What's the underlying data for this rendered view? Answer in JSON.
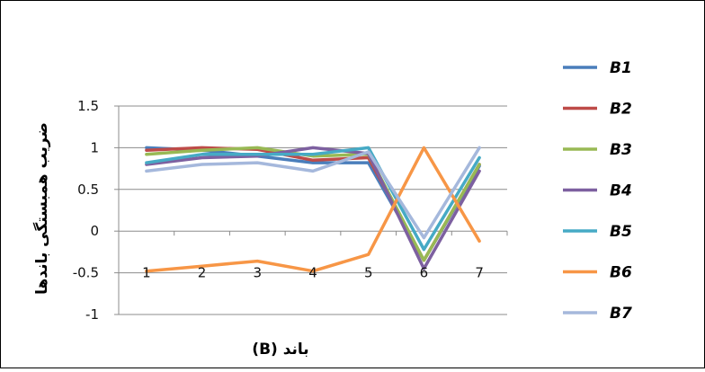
{
  "chart_data": {
    "type": "line",
    "title": "",
    "xlabel": "باند (B)",
    "ylabel": "ضریب همبستگی باندها",
    "x": [
      1,
      2,
      3,
      4,
      5,
      6,
      7
    ],
    "x_tick_labels": [
      "1",
      "2",
      "3",
      "4",
      "5",
      "6",
      "7"
    ],
    "y_tick_labels": [
      "1.5",
      "1",
      "0.5",
      "0",
      "-0.5",
      "-1"
    ],
    "y_ticks": [
      1.5,
      1,
      0.5,
      0,
      -0.5,
      -1
    ],
    "ylim": [
      -1,
      1.5
    ],
    "grid": "horizontal",
    "legend_position": "right",
    "series": [
      {
        "name": "B1",
        "color": "#4a7ebb",
        "values": [
          1,
          0.97,
          0.9,
          0.82,
          0.82,
          -0.35,
          0.78
        ]
      },
      {
        "name": "B2",
        "color": "#be4b48",
        "values": [
          0.97,
          1,
          0.98,
          0.85,
          0.88,
          -0.35,
          0.8
        ]
      },
      {
        "name": "B3",
        "color": "#98b954",
        "values": [
          0.92,
          0.97,
          1,
          0.9,
          0.92,
          -0.35,
          0.8
        ]
      },
      {
        "name": "B4",
        "color": "#7d60a0",
        "values": [
          0.8,
          0.88,
          0.9,
          1,
          0.93,
          -0.45,
          0.72
        ]
      },
      {
        "name": "B5",
        "color": "#46aac5",
        "values": [
          0.82,
          0.92,
          0.92,
          0.92,
          1,
          -0.22,
          0.88
        ]
      },
      {
        "name": "B6",
        "color": "#f79646",
        "values": [
          -0.48,
          -0.42,
          -0.36,
          -0.48,
          -0.28,
          1,
          -0.12
        ]
      },
      {
        "name": "B7",
        "color": "#a5b8dc",
        "values": [
          0.72,
          0.8,
          0.82,
          0.72,
          0.95,
          -0.08,
          1
        ]
      }
    ]
  }
}
